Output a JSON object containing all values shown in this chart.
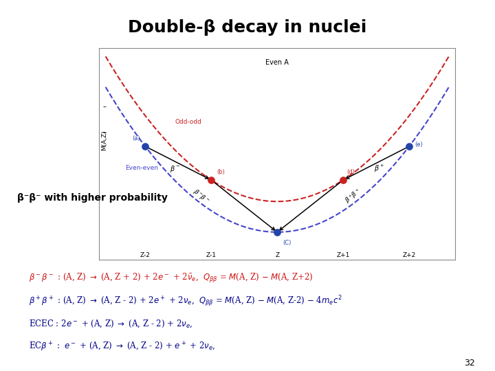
{
  "title": "Double-β decay in nuclei",
  "title_bg_color": "#b8cce4",
  "title_fontsize": 18,
  "slide_bg": "#ffffff",
  "highlight_text": "β⁻β⁻ with higher probability",
  "highlight_bg": "#ffff00",
  "highlight_color": "#000000",
  "page_number": "32",
  "diagram_border": "#000000",
  "even_even_color": "#4444cc",
  "odd_odd_color": "#cc2222",
  "dot_even_color": "#2244aa",
  "dot_odd_color": "#cc2222",
  "arrow_color": "#000000"
}
